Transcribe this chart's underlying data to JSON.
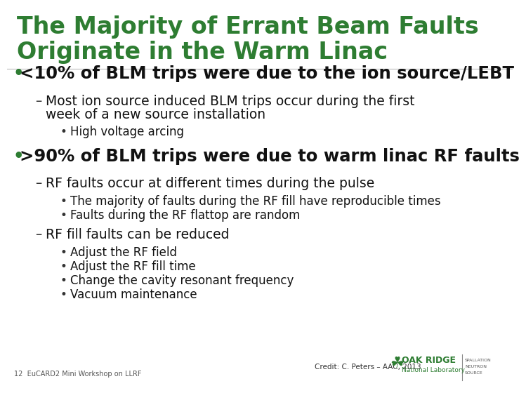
{
  "title_line1": "The Majority of Errant Beam Faults",
  "title_line2": "Originate in the Warm Linac",
  "title_color": "#2E7D32",
  "bg_color": "#FFFFFF",
  "text_color": "#000000",
  "footer_left": "12  EuCARD2 Mini Workshop on LLRF",
  "footer_right": "Credit: C. Peters – AAC, 2013",
  "oak_ridge_text": "OAK RIDGE",
  "oak_ridge_sub": "National Laboratory",
  "spallation": [
    "SPALLATION",
    "NEUTRON",
    "SOURCE"
  ],
  "content": [
    {
      "level": 0,
      "bullet": "•",
      "text": "<10% of BLM trips were due to the ion source/LEBT",
      "bold": true,
      "size": 17.5
    },
    {
      "level": 1,
      "bullet": "–",
      "text": "Most ion source induced BLM trips occur during the first",
      "bold": false,
      "size": 13.5
    },
    {
      "level": 1,
      "bullet": "",
      "text": "week of a new source installation",
      "bold": false,
      "size": 13.5
    },
    {
      "level": 2,
      "bullet": "•",
      "text": "High voltage arcing",
      "bold": false,
      "size": 12
    },
    {
      "level": 0,
      "bullet": "•",
      "text": ">90% of BLM trips were due to warm linac RF faults",
      "bold": true,
      "size": 17.5
    },
    {
      "level": 1,
      "bullet": "–",
      "text": "RF faults occur at different times during the pulse",
      "bold": false,
      "size": 13.5
    },
    {
      "level": 2,
      "bullet": "•",
      "text": "The majority of faults during the RF fill have reproducible times",
      "bold": false,
      "size": 12
    },
    {
      "level": 2,
      "bullet": "•",
      "text": "Faults during the RF flattop are random",
      "bold": false,
      "size": 12
    },
    {
      "level": 1,
      "bullet": "–",
      "text": "RF fill faults can be reduced",
      "bold": false,
      "size": 13.5
    },
    {
      "level": 2,
      "bullet": "•",
      "text": "Adjust the RF field",
      "bold": false,
      "size": 12
    },
    {
      "level": 2,
      "bullet": "•",
      "text": "Adjust the RF fill time",
      "bold": false,
      "size": 12
    },
    {
      "level": 2,
      "bullet": "•",
      "text": "Change the cavity resonant frequency",
      "bold": false,
      "size": 12
    },
    {
      "level": 2,
      "bullet": "•",
      "text": "Vacuum maintenance",
      "bold": false,
      "size": 12
    }
  ],
  "level_indent": [
    18,
    55,
    90
  ],
  "bullet_indent": [
    8,
    40,
    76
  ]
}
